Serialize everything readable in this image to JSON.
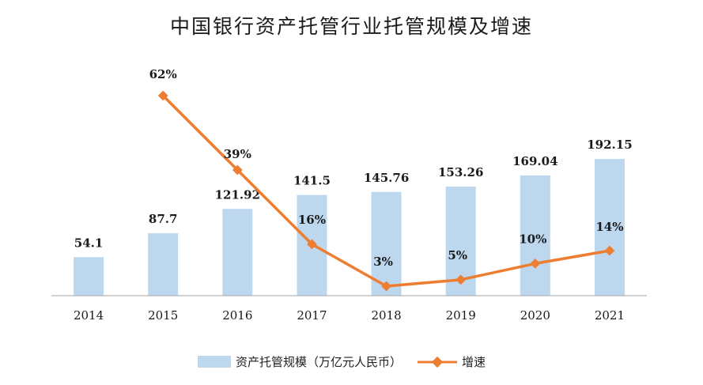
{
  "title": "中国银行资产托管行业托管规模及增速",
  "colors": {
    "bar": "#bdd7ee",
    "line": "#ed7d31",
    "axis": "#a6a6a6",
    "text": "#1a1a1a"
  },
  "legend": {
    "bar_label": "资产托管规模（万亿元人民币）",
    "line_label": "增速"
  },
  "chart_data": {
    "type": "bar",
    "title": "中国银行资产托管行业托管规模及增速",
    "categories": [
      "2014",
      "2015",
      "2016",
      "2017",
      "2018",
      "2019",
      "2020",
      "2021"
    ],
    "series": [
      {
        "name": "资产托管规模（万亿元人民币）",
        "type": "bar",
        "values": [
          54.1,
          87.7,
          121.92,
          141.5,
          145.76,
          153.26,
          169.04,
          192.15
        ],
        "labels": [
          "54.1",
          "87.7",
          "121.92",
          "141.5",
          "145.76",
          "153.26",
          "169.04",
          "192.15"
        ]
      },
      {
        "name": "增速",
        "type": "line",
        "values": [
          null,
          62,
          39,
          16,
          3,
          5,
          10,
          14
        ],
        "labels": [
          "",
          "62%",
          "39%",
          "16%",
          "3%",
          "5%",
          "10%",
          "14%"
        ]
      }
    ],
    "legend_position": "bottom",
    "grid": false
  }
}
